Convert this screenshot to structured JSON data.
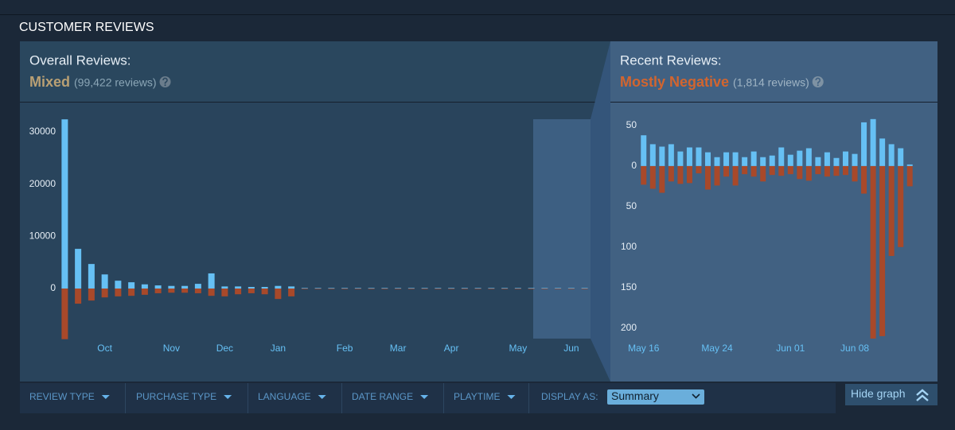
{
  "section_title": "CUSTOMER REVIEWS",
  "overall": {
    "label": "Overall Reviews:",
    "summary": "Mixed",
    "count": "(99,422 reviews)"
  },
  "recent": {
    "label": "Recent Reviews:",
    "summary": "Mostly Negative",
    "count": "(1,814 reviews)"
  },
  "chart_data": [
    {
      "type": "bar",
      "categories": [
        null,
        null,
        null,
        "Oct",
        null,
        null,
        null,
        null,
        "Nov",
        null,
        null,
        null,
        "Dec",
        null,
        null,
        null,
        "Jan",
        null,
        null,
        null,
        null,
        "Feb",
        null,
        null,
        null,
        "Mar",
        null,
        null,
        null,
        "Apr",
        null,
        null,
        null,
        null,
        "May",
        null,
        null,
        null,
        "Jun",
        null
      ],
      "series": [
        {
          "color": "#66c0f4",
          "values": [
            32400,
            7600,
            4700,
            2700,
            1500,
            1200,
            800,
            600,
            500,
            500,
            900,
            2900,
            400,
            400,
            300,
            300,
            500,
            400,
            100,
            100,
            100,
            100,
            100,
            100,
            100,
            100,
            100,
            100,
            100,
            100,
            100,
            100,
            100,
            100,
            100,
            100,
            100,
            100,
            100,
            100
          ]
        },
        {
          "color": "#a8492a",
          "values": [
            -9700,
            -2900,
            -2300,
            -1700,
            -1500,
            -1400,
            -1200,
            -900,
            -800,
            -800,
            -900,
            -1400,
            -1500,
            -1100,
            -900,
            -1100,
            -2000,
            -1500,
            -100,
            -100,
            -100,
            -100,
            -100,
            -100,
            -100,
            -100,
            -100,
            -100,
            -100,
            -100,
            -100,
            -100,
            -100,
            -100,
            -100,
            -100,
            -100,
            -100,
            -100,
            -100
          ]
        }
      ],
      "ylim": [
        -10000,
        32500
      ],
      "yticks": [
        0,
        10000,
        20000,
        30000
      ]
    },
    {
      "type": "bar",
      "categories": [
        "May 16",
        null,
        null,
        null,
        null,
        null,
        null,
        null,
        "May 24",
        null,
        null,
        null,
        null,
        null,
        null,
        null,
        "Jun 01",
        null,
        null,
        null,
        null,
        null,
        null,
        "Jun 08",
        null,
        null,
        null,
        null,
        null,
        null
      ],
      "series": [
        {
          "color": "#66c0f4",
          "values": [
            38,
            27,
            24,
            27,
            18,
            23,
            23,
            17,
            11,
            17,
            17,
            11,
            18,
            11,
            13,
            23,
            14,
            19,
            22,
            11,
            17,
            10,
            18,
            15,
            54,
            58,
            34,
            27,
            22,
            2
          ]
        },
        {
          "color": "#a8492a",
          "values": [
            -23,
            -28,
            -33,
            -19,
            -22,
            -21,
            -9,
            -29,
            -24,
            -13,
            -24,
            -10,
            -13,
            -19,
            -11,
            -12,
            -10,
            -16,
            -18,
            -10,
            -13,
            -12,
            -11,
            -19,
            -34,
            -213,
            -210,
            -111,
            -100,
            -25
          ]
        }
      ],
      "ylim": [
        -215,
        60
      ],
      "yticks": [
        {
          "value": -200,
          "label": "200"
        },
        {
          "value": -150,
          "label": "150"
        },
        {
          "value": -100,
          "label": "100"
        },
        {
          "value": -50,
          "label": "50"
        },
        0,
        50
      ]
    }
  ],
  "filters": [
    "REVIEW TYPE",
    "PURCHASE TYPE",
    "LANGUAGE",
    "DATE RANGE",
    "PLAYTIME"
  ],
  "display_as": {
    "label": "DISPLAY AS:",
    "value": "Summary"
  },
  "hide_graph": "Hide graph"
}
